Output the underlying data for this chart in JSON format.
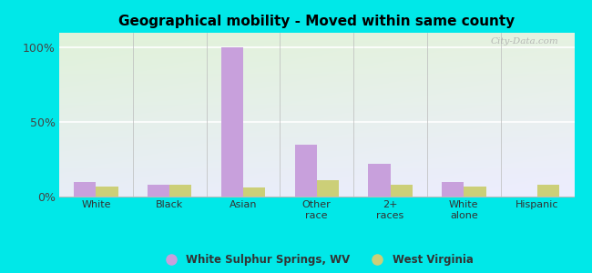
{
  "title": "Geographical mobility - Moved within same county",
  "categories": [
    "White",
    "Black",
    "Asian",
    "Other\nrace",
    "2+\nraces",
    "White\nalone",
    "Hispanic"
  ],
  "wss_values": [
    10,
    8,
    100,
    35,
    22,
    10,
    0
  ],
  "wv_values": [
    7,
    8,
    6,
    11,
    8,
    7,
    8
  ],
  "wss_color": "#c8a0dc",
  "wv_color": "#cccf78",
  "bg_outer": "#00e8e8",
  "yticks": [
    0,
    50,
    100
  ],
  "ytick_labels": [
    "0%",
    "50%",
    "100%"
  ],
  "ylim": [
    0,
    110
  ],
  "legend_wss": "White Sulphur Springs, WV",
  "legend_wv": "West Virginia",
  "bar_width": 0.3,
  "watermark": "City-Data.com"
}
